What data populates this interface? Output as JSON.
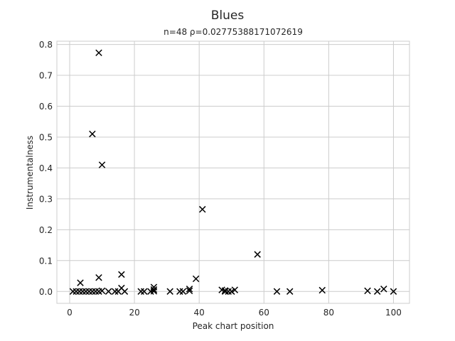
{
  "chart_data": {
    "type": "scatter",
    "title": "Blues",
    "subtitle": "n=48 ρ=0.02775388171072619",
    "xlabel": "Peak chart position",
    "ylabel": "Instrumentalness",
    "xlim": [
      -3.95,
      104.95
    ],
    "ylim": [
      -0.0385,
      0.8105
    ],
    "xticks": [
      0,
      20,
      40,
      60,
      80,
      100
    ],
    "xtick_labels": [
      "0",
      "20",
      "40",
      "60",
      "80",
      "100"
    ],
    "yticks": [
      0.0,
      0.1,
      0.2,
      0.3,
      0.4,
      0.5,
      0.6,
      0.7,
      0.8
    ],
    "ytick_labels": [
      "0.0",
      "0.1",
      "0.2",
      "0.3",
      "0.4",
      "0.5",
      "0.6",
      "0.7",
      "0.8"
    ],
    "grid": true,
    "marker": "x",
    "marker_color": "#000000",
    "points": [
      {
        "x": 1,
        "y": 0.0
      },
      {
        "x": 2,
        "y": 0.0
      },
      {
        "x": 3,
        "y": 0.0
      },
      {
        "x": 3.3,
        "y": 0.028
      },
      {
        "x": 4,
        "y": 0.0
      },
      {
        "x": 6,
        "y": 0.0
      },
      {
        "x": 7,
        "y": 0.0
      },
      {
        "x": 7,
        "y": 0.51
      },
      {
        "x": 8,
        "y": 0.0
      },
      {
        "x": 9,
        "y": 0.773
      },
      {
        "x": 9,
        "y": 0.045
      },
      {
        "x": 9,
        "y": 0.0
      },
      {
        "x": 10,
        "y": 0.41
      },
      {
        "x": 10,
        "y": 0.002
      },
      {
        "x": 12,
        "y": 0.0
      },
      {
        "x": 14,
        "y": 0.0
      },
      {
        "x": 15,
        "y": 0.0
      },
      {
        "x": 16,
        "y": 0.055
      },
      {
        "x": 16,
        "y": 0.011
      },
      {
        "x": 17,
        "y": 0.0
      },
      {
        "x": 22,
        "y": 0.0
      },
      {
        "x": 23,
        "y": 0.0
      },
      {
        "x": 25,
        "y": 0.0
      },
      {
        "x": 26,
        "y": 0.014
      },
      {
        "x": 26,
        "y": 0.006
      },
      {
        "x": 26,
        "y": 0.001
      },
      {
        "x": 31,
        "y": 0.0
      },
      {
        "x": 34,
        "y": 0.0
      },
      {
        "x": 35,
        "y": 0.0
      },
      {
        "x": 37,
        "y": 0.008
      },
      {
        "x": 37,
        "y": 0.002
      },
      {
        "x": 39,
        "y": 0.041
      },
      {
        "x": 41,
        "y": 0.266
      },
      {
        "x": 47,
        "y": 0.005
      },
      {
        "x": 48,
        "y": 0.0
      },
      {
        "x": 49,
        "y": 0.0
      },
      {
        "x": 50,
        "y": 0.0
      },
      {
        "x": 51,
        "y": 0.005
      },
      {
        "x": 58,
        "y": 0.12
      },
      {
        "x": 64,
        "y": 0.0
      },
      {
        "x": 68,
        "y": 0.0
      },
      {
        "x": 78,
        "y": 0.004
      },
      {
        "x": 92,
        "y": 0.002
      },
      {
        "x": 95,
        "y": 0.0
      },
      {
        "x": 97,
        "y": 0.008
      },
      {
        "x": 100,
        "y": 0.0
      },
      {
        "x": 48,
        "y": 0.003
      },
      {
        "x": 5,
        "y": 0.0
      }
    ]
  }
}
